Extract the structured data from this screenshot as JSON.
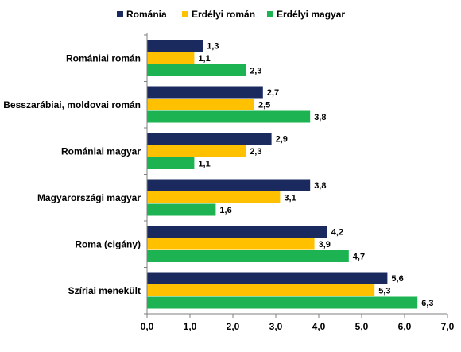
{
  "chart_data": {
    "type": "bar",
    "orientation": "horizontal",
    "categories": [
      "Romániai román",
      "Besszarábiai, moldovai román",
      "Romániai magyar",
      "Magyarországi magyar",
      "Roma (cigány)",
      "Szíriai menekült"
    ],
    "series": [
      {
        "name": "Románia",
        "color": "#1a2a5e",
        "values": [
          1.3,
          2.7,
          2.9,
          3.8,
          4.2,
          5.6
        ],
        "labels": [
          "1,3",
          "2,7",
          "2,9",
          "3,8",
          "4,2",
          "5,6"
        ]
      },
      {
        "name": "Erdélyi román",
        "color": "#ffc000",
        "values": [
          1.1,
          2.5,
          2.3,
          3.1,
          3.9,
          5.3
        ],
        "labels": [
          "1,1",
          "2,5",
          "2,3",
          "3,1",
          "3,9",
          "5,3"
        ]
      },
      {
        "name": "Erdélyi magyar",
        "color": "#1db352",
        "values": [
          2.3,
          3.8,
          1.1,
          1.6,
          4.7,
          6.3
        ],
        "labels": [
          "2,3",
          "3,8",
          "1,1",
          "1,6",
          "4,7",
          "6,3"
        ]
      }
    ],
    "xlim": [
      0,
      7
    ],
    "xticks": [
      0,
      1,
      2,
      3,
      4,
      5,
      6,
      7
    ],
    "xtick_labels": [
      "0,0",
      "1,0",
      "2,0",
      "3,0",
      "4,0",
      "5,0",
      "6,0",
      "7,0"
    ],
    "legend_position": "top",
    "grid": false
  }
}
